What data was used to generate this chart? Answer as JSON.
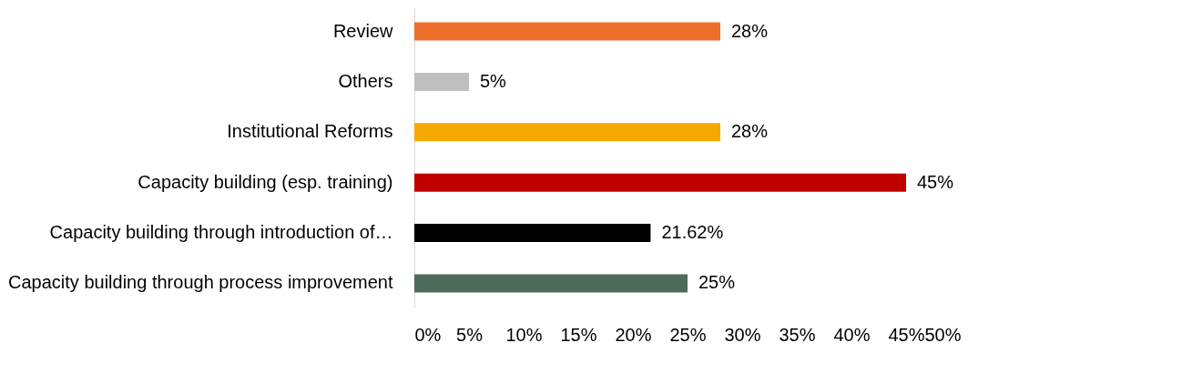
{
  "chart_data": {
    "type": "bar",
    "orientation": "horizontal",
    "categories": [
      "Review",
      "Others",
      "Institutional Reforms",
      "Capacity building (esp. training)",
      "Capacity building through introduction of…",
      "Capacity building through process improvement"
    ],
    "values": [
      28,
      5,
      28,
      45,
      21.62,
      25
    ],
    "colors": [
      "#ed6d2c",
      "#bfbfbf",
      "#f5a800",
      "#c00000",
      "#000000",
      "#4e6a5a"
    ],
    "value_labels": [
      "28%",
      "5%",
      "28%",
      "45%",
      "21.62%",
      "25%"
    ],
    "xlim": [
      0,
      50
    ],
    "xticks": [
      {
        "value": 0,
        "label": "0%"
      },
      {
        "value": 5,
        "label": "5%"
      },
      {
        "value": 10,
        "label": "10%"
      },
      {
        "value": 15,
        "label": "15%"
      },
      {
        "value": 20,
        "label": "20%"
      },
      {
        "value": 25,
        "label": "25%"
      },
      {
        "value": 30,
        "label": "30%"
      },
      {
        "value": 35,
        "label": "35%"
      },
      {
        "value": 40,
        "label": "40%"
      },
      {
        "value": 45,
        "label": "45%"
      },
      {
        "value": 50,
        "label": "50%"
      }
    ],
    "grid": false
  }
}
